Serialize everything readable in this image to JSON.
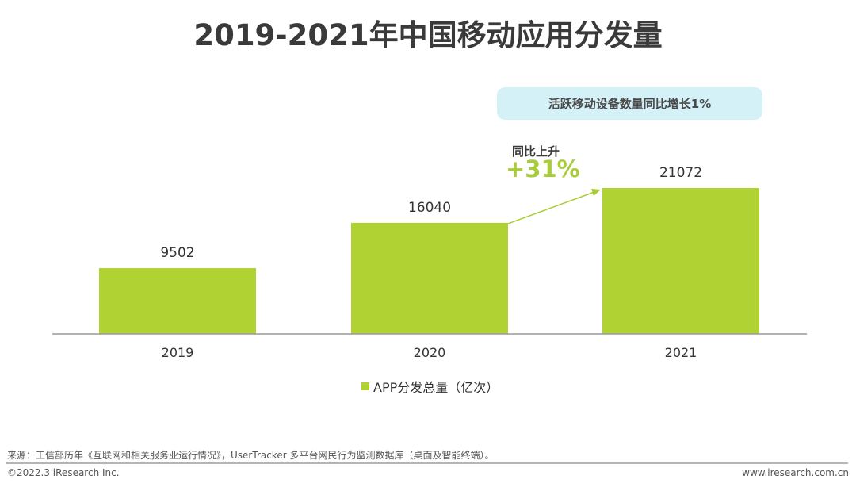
{
  "chart_data": {
    "type": "bar",
    "title": "2019-2021年中国移动应用分发量",
    "categories": [
      "2019",
      "2020",
      "2021"
    ],
    "series": [
      {
        "name": "APP分发总量（亿次）",
        "values": [
          9502,
          16040,
          21072
        ],
        "color": "#b0d232"
      }
    ],
    "data_labels": [
      "9502",
      "16040",
      "21072"
    ],
    "xlabel": "",
    "ylabel": "",
    "grid": false,
    "legend": "bottom",
    "annotations": {
      "callout": "活跃移动设备数量同比增长1%",
      "growth_label": "同比上升",
      "growth_value": "+31%",
      "arrow_color": "#a8cc3a"
    }
  },
  "footer": {
    "source": "来源：工信部历年《互联网和相关服务业运行情况》，UserTracker 多平台网民行为监测数据库（桌面及智能终端）。",
    "copyright": "©2022.3 iResearch Inc.",
    "website": "www.iresearch.com.cn"
  }
}
